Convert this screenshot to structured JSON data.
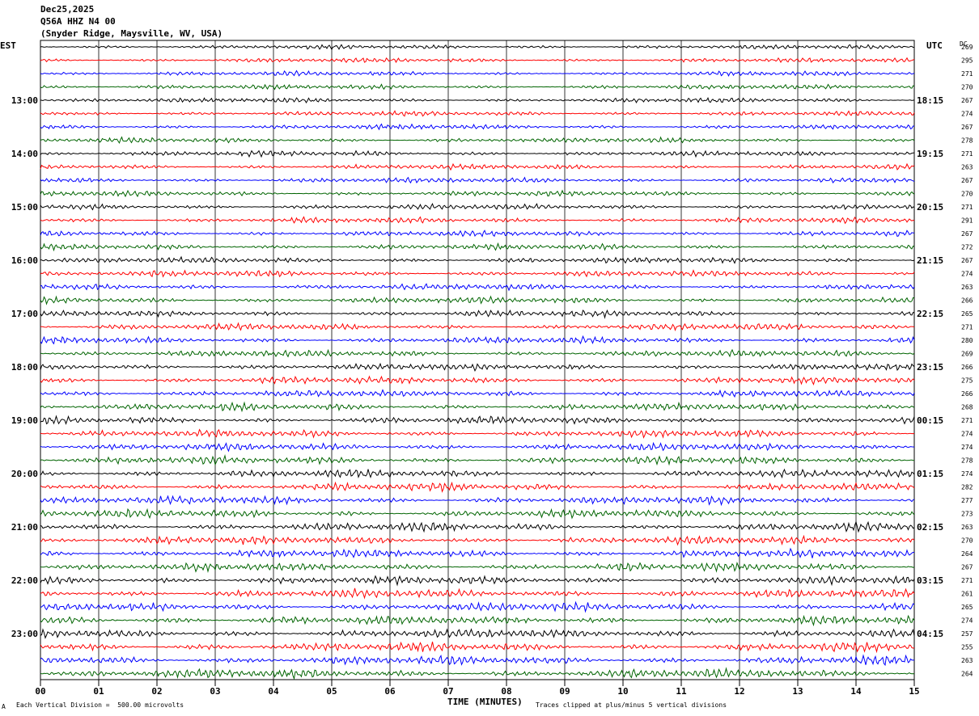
{
  "header": {
    "date": "Dec25,2025",
    "station": "Q56A HHZ N4 00",
    "location": "(Snyder Ridge, Maysville, WV, USA)"
  },
  "left_zone_label": "EST",
  "right_zone_label": "UTC",
  "dc_label": "DC",
  "footer": {
    "division_note": "Each Vertical Division =  500.00 microvolts",
    "clip_note": "Traces clipped at plus/minus 5 vertical divisions",
    "corner_mark": "A"
  },
  "colors": {
    "trace_cycle": [
      "#000000",
      "#ff0000",
      "#0000ff",
      "#006400"
    ],
    "background": "#ffffff",
    "grid": "#000000"
  },
  "chart_data": {
    "type": "line",
    "subtype": "helicorder",
    "xlabel": "TIME (MINUTES)",
    "x_ticks": [
      "00",
      "01",
      "02",
      "03",
      "04",
      "05",
      "06",
      "07",
      "08",
      "09",
      "10",
      "11",
      "12",
      "13",
      "14",
      "15"
    ],
    "xlim": [
      0,
      15
    ],
    "traces_per_hour": 4,
    "trace_count": 48,
    "left_hour_labels": [
      "13:00",
      "14:00",
      "15:00",
      "16:00",
      "17:00",
      "18:00",
      "19:00",
      "20:00",
      "21:00",
      "22:00",
      "23:00"
    ],
    "left_hour_label_first_trace": 4,
    "right_hour_labels": [
      "18:15",
      "19:15",
      "20:15",
      "21:15",
      "22:15",
      "23:15",
      "00:15",
      "01:15",
      "02:15",
      "03:15",
      "04:15"
    ],
    "right_hour_label_first_trace": 4,
    "dc_offsets": [
      269,
      295,
      271,
      270,
      267,
      274,
      267,
      278,
      271,
      263,
      267,
      270,
      271,
      291,
      267,
      272,
      267,
      274,
      263,
      266,
      265,
      271,
      280,
      269,
      266,
      275,
      266,
      268,
      271,
      274,
      274,
      278,
      274,
      282,
      277,
      273,
      263,
      270,
      264,
      267,
      271,
      261,
      265,
      274,
      257,
      255,
      263,
      264
    ],
    "clip_divisions": 5,
    "microvolts_per_division": 500
  }
}
